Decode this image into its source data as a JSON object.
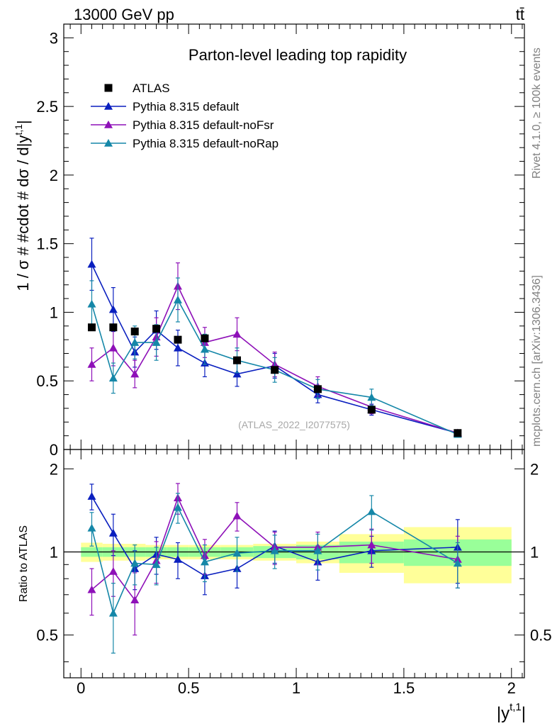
{
  "header": {
    "energy_label": "13000 GeV pp",
    "process_label": "tt̄",
    "side_rivet": "Rivet 4.1.0, ≥ 100k events",
    "side_mcplots": "mcplots.cern.ch [arXiv:1306.3436]"
  },
  "chart_data": {
    "type": "line",
    "title": "Parton-level leading top rapidity",
    "watermark": "(ATLAS_2022_I2077575)",
    "ylabel": "1 / σ # #cdot # dσ / d|y",
    "ylabel_sup": "t,1",
    "ylabel_end": "|",
    "ratio_ylabel": "Ratio to ATLAS",
    "xlabel": "|y",
    "xlabel_sup": "t,1",
    "xlabel_end": "|",
    "xlim": [
      -0.08,
      2.06
    ],
    "ylim": [
      0,
      3.1
    ],
    "ratio_ylim": [
      0.35,
      2.35
    ],
    "x_ticks": [
      {
        "value": 0,
        "label": "0"
      },
      {
        "value": 0.5,
        "label": "0.5"
      },
      {
        "value": 1,
        "label": "1"
      },
      {
        "value": 1.5,
        "label": "1.5"
      },
      {
        "value": 2,
        "label": "2"
      }
    ],
    "y_ticks": [
      {
        "value": 0,
        "label": "0"
      },
      {
        "value": 0.5,
        "label": "0.5"
      },
      {
        "value": 1,
        "label": "1"
      },
      {
        "value": 1.5,
        "label": "1.5"
      },
      {
        "value": 2,
        "label": "2"
      },
      {
        "value": 2.5,
        "label": "2.5"
      },
      {
        "value": 3,
        "label": "3"
      }
    ],
    "ratio_ticks": [
      {
        "value": 0.5,
        "label": "0.5"
      },
      {
        "value": 1,
        "label": "1"
      },
      {
        "value": 2,
        "label": "2"
      }
    ],
    "bins": [
      [
        0,
        0.1
      ],
      [
        0.1,
        0.2
      ],
      [
        0.2,
        0.3
      ],
      [
        0.3,
        0.4
      ],
      [
        0.4,
        0.5
      ],
      [
        0.5,
        0.65
      ],
      [
        0.65,
        0.8
      ],
      [
        0.8,
        1.0
      ],
      [
        1.0,
        1.2
      ],
      [
        1.2,
        1.5
      ],
      [
        1.5,
        2.0
      ]
    ],
    "x": [
      0.05,
      0.15,
      0.25,
      0.35,
      0.45,
      0.575,
      0.725,
      0.9,
      1.1,
      1.35,
      1.75
    ],
    "data": {
      "name": "ATLAS",
      "values": [
        0.89,
        0.89,
        0.86,
        0.88,
        0.8,
        0.81,
        0.65,
        0.58,
        0.44,
        0.29,
        0.12
      ],
      "ratio_band_stat": [
        0.04,
        0.04,
        0.04,
        0.04,
        0.04,
        0.04,
        0.04,
        0.05,
        0.06,
        0.09,
        0.11
      ],
      "ratio_band_total": [
        0.08,
        0.07,
        0.07,
        0.06,
        0.06,
        0.06,
        0.06,
        0.07,
        0.09,
        0.16,
        0.23
      ]
    },
    "series": [
      {
        "name": "Pythia 8.315 default",
        "color": "#0a1fbf",
        "values": [
          1.35,
          1.02,
          0.71,
          0.87,
          0.74,
          0.63,
          0.55,
          0.61,
          0.4,
          0.29,
          0.12
        ],
        "errors": [
          0.19,
          0.16,
          0.11,
          0.14,
          0.13,
          0.1,
          0.09,
          0.09,
          0.06,
          0.04,
          0.02
        ],
        "ratio": [
          1.59,
          1.17,
          0.87,
          0.98,
          0.94,
          0.82,
          0.87,
          1.05,
          0.92,
          1.01,
          1.04
        ],
        "ratio_errors": [
          0.17,
          0.2,
          0.14,
          0.15,
          0.14,
          0.12,
          0.13,
          0.14,
          0.13,
          0.13,
          0.27
        ]
      },
      {
        "name": "Pythia 8.315 default-noFsr",
        "color": "#8e10b8",
        "values": [
          0.62,
          0.74,
          0.55,
          0.82,
          1.19,
          0.78,
          0.84,
          0.62,
          0.46,
          0.31,
          0.12
        ],
        "errors": [
          0.12,
          0.13,
          0.1,
          0.14,
          0.17,
          0.11,
          0.12,
          0.09,
          0.07,
          0.05,
          0.02
        ],
        "ratio": [
          0.73,
          0.85,
          0.67,
          0.93,
          1.57,
          0.97,
          1.35,
          1.04,
          1.04,
          1.06,
          0.94
        ],
        "ratio_errors": [
          0.14,
          0.16,
          0.17,
          0.16,
          0.2,
          0.14,
          0.16,
          0.14,
          0.14,
          0.15,
          0.2
        ]
      },
      {
        "name": "Pythia 8.315 default-noRap",
        "color": "#1587a8",
        "values": [
          1.06,
          0.52,
          0.78,
          0.78,
          1.09,
          0.73,
          0.65,
          0.58,
          0.44,
          0.38,
          0.11
        ],
        "errors": [
          0.17,
          0.11,
          0.12,
          0.13,
          0.16,
          0.11,
          0.09,
          0.09,
          0.07,
          0.06,
          0.02
        ],
        "ratio": [
          1.22,
          0.6,
          0.91,
          0.9,
          1.45,
          0.92,
          0.99,
          1.01,
          1.01,
          1.4,
          0.91
        ],
        "ratio_errors": [
          0.17,
          0.17,
          0.15,
          0.14,
          0.18,
          0.14,
          0.14,
          0.14,
          0.15,
          0.2,
          0.17
        ]
      }
    ]
  }
}
